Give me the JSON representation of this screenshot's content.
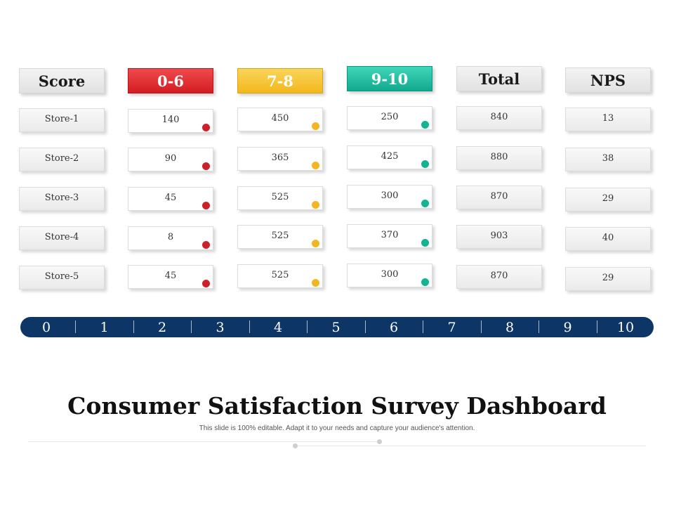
{
  "columns": [
    {
      "header": "Score",
      "cells": [
        "Store-1",
        "Store-2",
        "Store-3",
        "Store-4",
        "Store-5"
      ]
    },
    {
      "header": "0-6",
      "cells": [
        "140",
        "90",
        "45",
        "8",
        "45"
      ],
      "dot_color": "#cc2128"
    },
    {
      "header": "7-8",
      "cells": [
        "450",
        "365",
        "525",
        "525",
        "525"
      ],
      "dot_color": "#f2b622"
    },
    {
      "header": "9-10",
      "cells": [
        "250",
        "425",
        "300",
        "370",
        "300"
      ],
      "dot_color": "#13b394"
    },
    {
      "header": "Total",
      "cells": [
        "840",
        "880",
        "870",
        "903",
        "870"
      ]
    },
    {
      "header": "NPS",
      "cells": [
        "13",
        "38",
        "29",
        "40",
        "29"
      ]
    }
  ],
  "scale": {
    "ticks": [
      "0",
      "1",
      "2",
      "3",
      "4",
      "5",
      "6",
      "7",
      "8",
      "9",
      "10"
    ],
    "color": "#0d3566"
  },
  "title": "Consumer Satisfaction Survey Dashboard",
  "subtitle": "This slide is 100% editable. Adapt it to your needs and capture your audience's attention."
}
